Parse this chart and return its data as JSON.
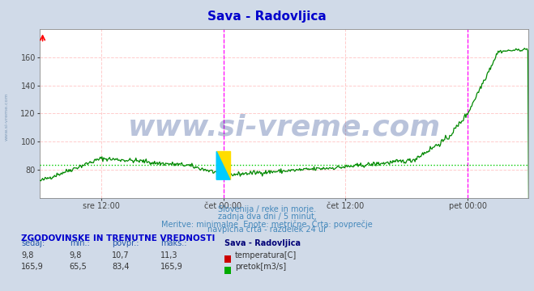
{
  "title": "Sava - Radovljica",
  "title_color": "#0000cc",
  "bg_color": "#d0dae8",
  "plot_bg_color": "#ffffff",
  "grid_color": "#ffcccc",
  "ylim": [
    60,
    180
  ],
  "yticks": [
    80,
    100,
    120,
    140,
    160
  ],
  "xlim": [
    0,
    576
  ],
  "x_tick_positions": [
    72,
    216,
    360,
    504
  ],
  "x_tick_labels": [
    "sre 12:00",
    "čet 00:00",
    "čet 12:00",
    "pet 00:00"
  ],
  "temp_color": "#dd0000",
  "flow_color": "#008800",
  "avg_color": "#00cc00",
  "avg_flow": 83.4,
  "magenta_line_x1": 216,
  "magenta_line_x2": 504,
  "watermark": "www.si-vreme.com",
  "watermark_color": "#1a3a8a",
  "watermark_alpha": 0.3,
  "subtitle1": "Slovenija / reke in morje.",
  "subtitle2": "zadnja dva dni / 5 minut.",
  "subtitle3": "Meritve: minimalne  Enote: metrične  Črta: povprečje",
  "subtitle4": "navpična črta - razdelek 24 ur",
  "table_header": "ZGODOVINSKE IN TRENUTNE VREDNOSTI",
  "col_headers": [
    "sedaj:",
    "min.:",
    "povpr.:",
    "maks.:",
    "Sava - Radovljica"
  ],
  "temp_row": [
    "9,8",
    "9,8",
    "10,7",
    "11,3"
  ],
  "flow_row": [
    "165,9",
    "65,5",
    "83,4",
    "165,9"
  ],
  "temp_label": "temperatura[C]",
  "flow_label": "pretok[m3/s]",
  "left_label": "www.si-vreme.com",
  "left_label_color": "#7090b0",
  "n_points": 577
}
